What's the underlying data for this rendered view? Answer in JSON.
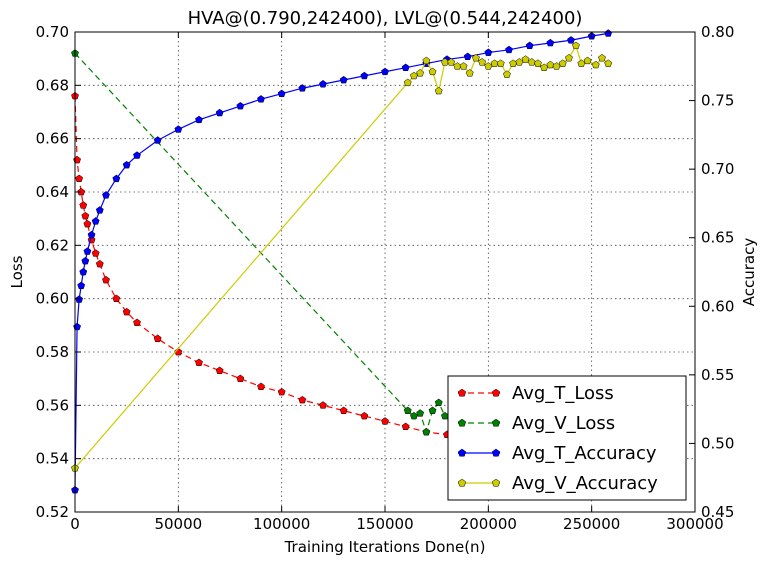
{
  "chart_data": {
    "type": "line",
    "title": "HVA@(0.790,242400), LVL@(0.544,242400)",
    "xlabel": "Training Iterations Done(n)",
    "ylabel_left": "Loss",
    "ylabel_right": "Accuracy",
    "xlim": [
      0,
      300000
    ],
    "ylim_left": [
      0.52,
      0.7
    ],
    "ylim_right": [
      0.45,
      0.8
    ],
    "x_ticks": [
      "0",
      "50000",
      "100000",
      "150000",
      "200000",
      "250000",
      "300000"
    ],
    "y_left_ticks": [
      "0.52",
      "0.54",
      "0.56",
      "0.58",
      "0.60",
      "0.62",
      "0.64",
      "0.66",
      "0.68",
      "0.70"
    ],
    "y_right_ticks": [
      "0.45",
      "0.50",
      "0.55",
      "0.60",
      "0.65",
      "0.70",
      "0.75",
      "0.80"
    ],
    "grid": true,
    "legend_position": "lower-right",
    "series": [
      {
        "name": "Avg_T_Loss",
        "axis": "left",
        "color": "#ff0000",
        "linestyle": "dashed",
        "marker": "pentagon",
        "x": [
          0,
          1000,
          2000,
          3000,
          4000,
          5000,
          6000,
          8000,
          10000,
          12000,
          15000,
          20000,
          25000,
          30000,
          40000,
          50000,
          60000,
          70000,
          80000,
          90000,
          100000,
          110000,
          120000,
          130000,
          140000,
          150000,
          160000,
          170000,
          180000,
          190000,
          200000,
          210000,
          220000,
          230000,
          240000,
          250000,
          258000
        ],
        "y": [
          0.676,
          0.652,
          0.645,
          0.64,
          0.635,
          0.631,
          0.628,
          0.622,
          0.617,
          0.613,
          0.607,
          0.6,
          0.595,
          0.591,
          0.585,
          0.58,
          0.576,
          0.573,
          0.57,
          0.567,
          0.565,
          0.562,
          0.56,
          0.558,
          0.556,
          0.554,
          0.552,
          0.55,
          0.549,
          0.548,
          0.547,
          0.546,
          0.545,
          0.5445,
          0.544,
          0.5435,
          0.543
        ]
      },
      {
        "name": "Avg_V_Loss",
        "axis": "left",
        "color": "#008000",
        "linestyle": "dashed",
        "marker": "pentagon",
        "x": [
          0,
          161000,
          164000,
          167000,
          170000,
          173000,
          176000,
          179000,
          182000,
          185000,
          188000,
          191000,
          194000,
          197000,
          200000,
          203000,
          206000,
          209000,
          212000,
          215000,
          218000,
          221000,
          224000,
          227000,
          230000,
          233000,
          236000,
          239000,
          242400,
          245000,
          248000,
          252000,
          255000,
          258000
        ],
        "y": [
          0.692,
          0.558,
          0.556,
          0.557,
          0.55,
          0.558,
          0.561,
          0.556,
          0.554,
          0.555,
          0.556,
          0.551,
          0.552,
          0.55,
          0.549,
          0.548,
          0.547,
          0.548,
          0.547,
          0.546,
          0.547,
          0.546,
          0.545,
          0.546,
          0.545,
          0.5445,
          0.545,
          0.544,
          0.544,
          0.5445,
          0.544,
          0.5435,
          0.544,
          0.543
        ]
      },
      {
        "name": "Avg_T_Accuracy",
        "axis": "right",
        "color": "#0000ff",
        "linestyle": "solid",
        "marker": "pentagon",
        "x": [
          0,
          1000,
          2000,
          3000,
          4000,
          5000,
          6000,
          8000,
          10000,
          12000,
          15000,
          20000,
          25000,
          30000,
          40000,
          50000,
          60000,
          70000,
          80000,
          90000,
          100000,
          110000,
          120000,
          130000,
          140000,
          150000,
          160000,
          170000,
          180000,
          190000,
          200000,
          210000,
          220000,
          230000,
          240000,
          250000,
          258000
        ],
        "y": [
          0.466,
          0.585,
          0.605,
          0.615,
          0.625,
          0.633,
          0.64,
          0.652,
          0.662,
          0.67,
          0.681,
          0.693,
          0.703,
          0.71,
          0.721,
          0.729,
          0.736,
          0.741,
          0.746,
          0.751,
          0.755,
          0.759,
          0.762,
          0.765,
          0.768,
          0.771,
          0.774,
          0.777,
          0.78,
          0.782,
          0.785,
          0.787,
          0.79,
          0.792,
          0.794,
          0.797,
          0.799
        ]
      },
      {
        "name": "Avg_V_Accuracy",
        "axis": "right",
        "color": "#cccc00",
        "linestyle": "solid",
        "marker": "pentagon",
        "x": [
          0,
          161000,
          164000,
          167000,
          170000,
          173000,
          176000,
          179000,
          182000,
          185000,
          188000,
          191000,
          194000,
          197000,
          200000,
          203000,
          206000,
          209000,
          212000,
          215000,
          218000,
          221000,
          224000,
          227000,
          230000,
          233000,
          236000,
          239000,
          242400,
          245000,
          248000,
          252000,
          255000,
          258000
        ],
        "y": [
          0.482,
          0.763,
          0.768,
          0.77,
          0.779,
          0.771,
          0.757,
          0.778,
          0.778,
          0.775,
          0.775,
          0.77,
          0.781,
          0.778,
          0.775,
          0.777,
          0.777,
          0.769,
          0.777,
          0.778,
          0.78,
          0.778,
          0.777,
          0.774,
          0.776,
          0.775,
          0.777,
          0.781,
          0.79,
          0.777,
          0.779,
          0.776,
          0.781,
          0.777
        ]
      }
    ]
  }
}
